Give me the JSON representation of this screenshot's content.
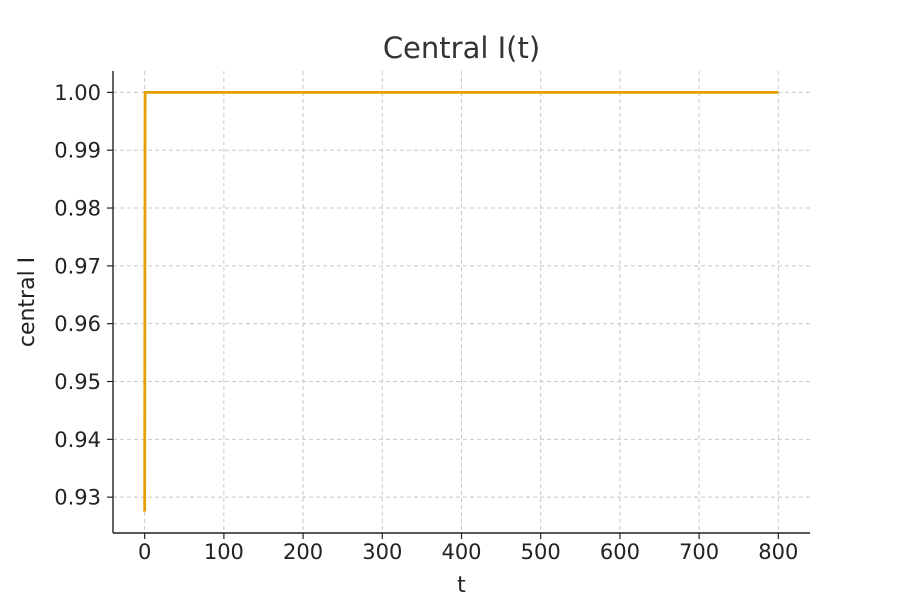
{
  "chart_data": {
    "type": "line",
    "title": "Central I(t)",
    "xlabel": "t",
    "ylabel": "central I",
    "xlim": [
      -40,
      840
    ],
    "ylim": [
      0.9238,
      1.0037
    ],
    "xticks": [
      0,
      100,
      200,
      300,
      400,
      500,
      600,
      700,
      800
    ],
    "yticks": [
      0.93,
      0.94,
      0.95,
      0.96,
      0.97,
      0.98,
      0.99,
      1.0
    ],
    "xtick_labels": [
      "0",
      "100",
      "200",
      "300",
      "400",
      "500",
      "600",
      "700",
      "800"
    ],
    "ytick_labels": [
      "0.93",
      "0.94",
      "0.95",
      "0.96",
      "0.97",
      "0.98",
      "0.99",
      "1.00"
    ],
    "grid": true,
    "series": [
      {
        "color": "#e69f00",
        "x": [
          0,
          0.5,
          800
        ],
        "y": [
          0.9275,
          1.0,
          1.0
        ]
      }
    ]
  }
}
